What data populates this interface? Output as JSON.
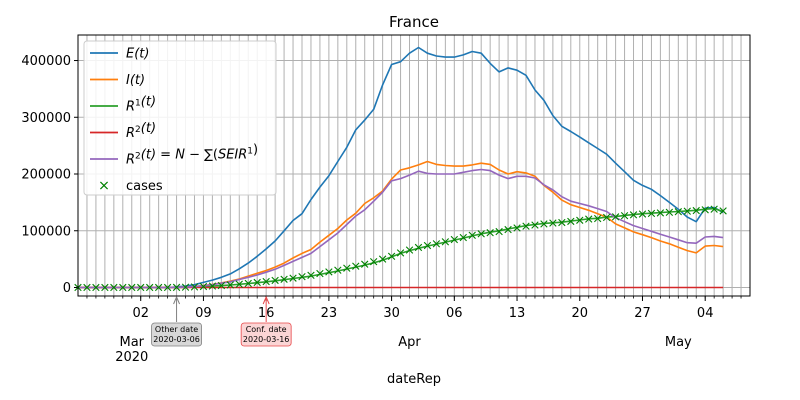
{
  "chart_data": {
    "type": "line",
    "title": "France",
    "xlabel": "dateRep",
    "ylabel": "",
    "ylim": [
      -15000,
      445000
    ],
    "xlim": [
      "2020-02-24",
      "2020-05-09"
    ],
    "grid": true,
    "legend_placement": "top-left",
    "x_major_ticks": [
      {
        "date": "2020-03-02",
        "label": "02"
      },
      {
        "date": "2020-03-09",
        "label": "09"
      },
      {
        "date": "2020-03-16",
        "label": "16"
      },
      {
        "date": "2020-03-23",
        "label": "23"
      },
      {
        "date": "2020-03-30",
        "label": "30"
      },
      {
        "date": "2020-04-06",
        "label": "06"
      },
      {
        "date": "2020-04-13",
        "label": "13"
      },
      {
        "date": "2020-04-20",
        "label": "20"
      },
      {
        "date": "2020-04-27",
        "label": "27"
      },
      {
        "date": "2020-05-04",
        "label": "04"
      }
    ],
    "x_month_ticks": [
      {
        "date": "2020-03-01",
        "label": "Mar",
        "year": "2020"
      },
      {
        "date": "2020-04-01",
        "label": "Apr",
        "year": ""
      },
      {
        "date": "2020-05-01",
        "label": "May",
        "year": ""
      }
    ],
    "y_ticks": [
      0,
      100000,
      200000,
      300000,
      400000
    ],
    "start_date": "2020-02-24",
    "series": [
      {
        "name": "E(t)",
        "legend_parts": [
          [
            "E(",
            "i"
          ],
          [
            "t",
            "i"
          ],
          [
            ")",
            "i"
          ]
        ],
        "color": "#1f77b4",
        "style": "line",
        "values": [
          0,
          0,
          0,
          0,
          0,
          0,
          0,
          0,
          0,
          0,
          0,
          1000,
          2500,
          5000,
          9000,
          13000,
          18000,
          24000,
          33000,
          43000,
          55000,
          68000,
          82000,
          100000,
          118000,
          130000,
          155000,
          177000,
          197000,
          222000,
          247000,
          278000,
          295000,
          314000,
          357000,
          393000,
          398000,
          413000,
          423000,
          413000,
          408000,
          406000,
          406000,
          410000,
          416000,
          413000,
          395000,
          380000,
          387000,
          383000,
          374000,
          348000,
          330000,
          303000,
          284000,
          275000,
          265000,
          255000,
          245000,
          235000,
          219000,
          204000,
          189000,
          180000,
          173000,
          162000,
          150000,
          138000,
          124000,
          116000,
          140000,
          141000,
          132000
        ]
      },
      {
        "name": "I(t)",
        "legend_parts": [
          [
            "I(",
            "i"
          ],
          [
            "t",
            "i"
          ],
          [
            ")",
            "i"
          ]
        ],
        "color": "#ff7f0e",
        "style": "line",
        "values": [
          0,
          0,
          0,
          0,
          0,
          0,
          0,
          0,
          0,
          0,
          0,
          300,
          800,
          1800,
          3500,
          5500,
          8000,
          11000,
          15000,
          20000,
          25000,
          30000,
          36000,
          43000,
          52000,
          60000,
          67000,
          80000,
          92000,
          104000,
          119000,
          131000,
          148000,
          158000,
          170000,
          191000,
          207000,
          211000,
          216000,
          222000,
          217000,
          215000,
          214000,
          214000,
          216000,
          219000,
          217000,
          207000,
          200000,
          204000,
          202000,
          196000,
          180000,
          168000,
          154000,
          146000,
          141000,
          136000,
          130000,
          124000,
          112000,
          105000,
          98000,
          93000,
          88000,
          82000,
          77000,
          71000,
          65000,
          61000,
          73000,
          74000,
          72000
        ]
      },
      {
        "name": "R^1(t)",
        "legend_parts": [
          [
            "R",
            "i"
          ],
          [
            "1",
            "sup"
          ],
          [
            "(",
            "i"
          ],
          [
            "t",
            "i"
          ],
          [
            ")",
            "i"
          ]
        ],
        "color": "#2ca02c",
        "style": "line",
        "values": [
          0,
          0,
          0,
          0,
          0,
          0,
          0,
          0,
          0,
          0,
          0,
          100,
          400,
          900,
          1600,
          2400,
          3300,
          4400,
          5600,
          7000,
          8500,
          10000,
          11800,
          13700,
          15800,
          18000,
          20000,
          23000,
          26000,
          29000,
          32500,
          36000,
          39500,
          43500,
          48000,
          54000,
          60000,
          65000,
          69000,
          73000,
          76500,
          80000,
          83500,
          87000,
          91000,
          94500,
          97500,
          100000,
          103000,
          106000,
          109000,
          111000,
          113000,
          114000,
          115000,
          117000,
          119000,
          121000,
          122000,
          124000,
          125000,
          127000,
          128500,
          130000,
          131000,
          132000,
          133000,
          134000,
          135000,
          136000,
          138000,
          139000,
          134000
        ]
      },
      {
        "name": "R^2(t)",
        "legend_parts": [
          [
            "R",
            "i"
          ],
          [
            "2",
            "sup"
          ],
          [
            "(",
            "i"
          ],
          [
            "t",
            "i"
          ],
          [
            ")",
            "i"
          ]
        ],
        "color": "#d62728",
        "style": "line",
        "values": [
          0,
          0,
          0,
          0,
          0,
          0,
          0,
          0,
          0,
          0,
          0,
          0,
          0,
          0,
          0,
          0,
          0,
          0,
          0,
          0,
          0,
          0,
          0,
          0,
          0,
          0,
          0,
          0,
          0,
          0,
          0,
          0,
          0,
          0,
          0,
          0,
          0,
          0,
          0,
          0,
          0,
          0,
          0,
          0,
          0,
          0,
          0,
          0,
          0,
          0,
          0,
          0,
          0,
          0,
          0,
          0,
          0,
          0,
          0,
          0,
          0,
          0,
          0,
          0,
          0,
          0,
          0,
          0,
          0,
          0,
          0,
          0,
          0
        ]
      },
      {
        "name": "R^2(t) = N − ∑(SEIR^1)",
        "legend_parts": [
          [
            "R",
            "i"
          ],
          [
            "2",
            "sup"
          ],
          [
            "(",
            "i"
          ],
          [
            "t",
            "i"
          ],
          [
            ")",
            "i"
          ],
          [
            " = ",
            "n"
          ],
          [
            "N",
            "i"
          ],
          [
            " − ∑(",
            "n"
          ],
          [
            "SEIR",
            "i"
          ],
          [
            "1",
            "sup"
          ],
          [
            ")",
            "n"
          ]
        ],
        "color": "#9467bd",
        "style": "line",
        "values": [
          0,
          0,
          0,
          0,
          0,
          0,
          0,
          0,
          0,
          0,
          0,
          300,
          700,
          1500,
          3000,
          5000,
          7500,
          10000,
          14000,
          18000,
          22000,
          27000,
          32000,
          39000,
          46000,
          53000,
          60000,
          72000,
          84000,
          96000,
          111000,
          126000,
          137000,
          152000,
          168000,
          188000,
          192000,
          198000,
          205000,
          201000,
          200000,
          200000,
          200000,
          203000,
          206000,
          208000,
          206000,
          198000,
          192000,
          196000,
          196000,
          193000,
          181000,
          172000,
          160000,
          152000,
          148000,
          144000,
          139000,
          134000,
          123000,
          116000,
          109000,
          104000,
          99000,
          94000,
          89000,
          84000,
          79000,
          78000,
          89000,
          90000,
          88000
        ]
      },
      {
        "name": "cases",
        "legend_parts": [
          [
            "cases",
            "n"
          ]
        ],
        "color": "#008000",
        "style": "marker",
        "values": [
          0,
          0,
          0,
          0,
          0,
          0,
          0,
          0,
          0,
          0,
          0,
          200,
          500,
          1000,
          1700,
          2500,
          3400,
          4500,
          5800,
          7200,
          8800,
          10500,
          12500,
          14500,
          16500,
          19000,
          21500,
          24500,
          27500,
          30500,
          34000,
          37500,
          41000,
          45500,
          50000,
          55000,
          61000,
          66000,
          70500,
          74000,
          77000,
          80500,
          84500,
          88000,
          92000,
          94500,
          96500,
          98500,
          102000,
          105000,
          108000,
          110000,
          112000,
          113500,
          114500,
          116500,
          118500,
          120500,
          121500,
          123500,
          124500,
          126500,
          128000,
          129500,
          130500,
          131500,
          132500,
          133500,
          134500,
          135500,
          137000,
          138000,
          135000
        ]
      }
    ],
    "annotations": [
      {
        "date": "2020-03-06",
        "line1": "Other date",
        "line2": "2020-03-06",
        "color": "#808080",
        "box_fill": "#d8d8d8"
      },
      {
        "date": "2020-03-16",
        "line1": "Conf. date",
        "line2": "2020-03-16",
        "color": "#e8484a",
        "box_fill": "#fbd5d5"
      }
    ]
  }
}
